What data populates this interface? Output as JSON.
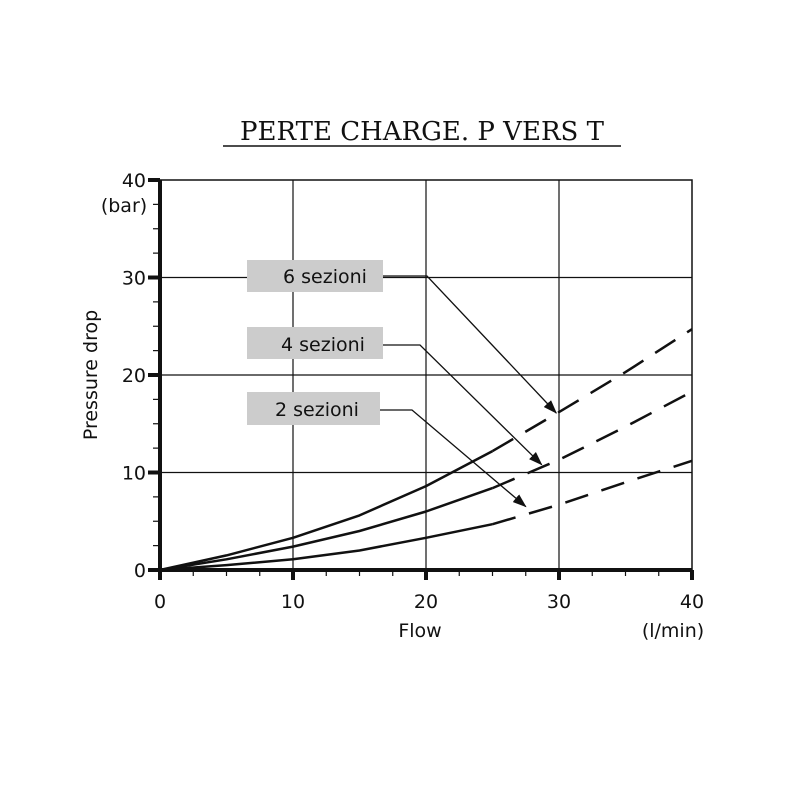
{
  "chart_data": {
    "type": "line",
    "title": "PERTE CHARGE. P VERS T",
    "xlabel": "Flow",
    "xunit": "(l/min)",
    "ylabel": "Pressure drop",
    "yunit": "(bar)",
    "xlim": [
      0,
      40
    ],
    "ylim": [
      0,
      40
    ],
    "xticks": [
      0,
      10,
      20,
      30,
      40
    ],
    "yticks": [
      0,
      10,
      20,
      30,
      40
    ],
    "grid": true,
    "series": [
      {
        "name": "6 sezioni",
        "solid": {
          "x": [
            0,
            5,
            10,
            15,
            20,
            25
          ],
          "y": [
            0,
            1.5,
            3.3,
            5.6,
            8.6,
            12.2
          ]
        },
        "dashed": {
          "x": [
            25,
            30,
            35,
            40
          ],
          "y": [
            12.2,
            16.2,
            20.3,
            24.7
          ]
        }
      },
      {
        "name": "4 sezioni",
        "solid": {
          "x": [
            0,
            5,
            10,
            15,
            20,
            25
          ],
          "y": [
            0,
            1.1,
            2.4,
            4.0,
            6.0,
            8.4
          ]
        },
        "dashed": {
          "x": [
            25,
            30,
            35,
            40
          ],
          "y": [
            8.4,
            11.3,
            14.7,
            18.3
          ]
        }
      },
      {
        "name": "2 sezioni",
        "solid": {
          "x": [
            0,
            5,
            10,
            15,
            20,
            25
          ],
          "y": [
            0,
            0.5,
            1.1,
            2.0,
            3.3,
            4.7
          ]
        },
        "dashed": {
          "x": [
            25,
            30,
            35,
            40
          ],
          "y": [
            4.7,
            6.7,
            9.0,
            11.2
          ]
        }
      }
    ],
    "callouts": [
      {
        "label": "6 sezioni",
        "target": [
          29.8,
          16.1
        ]
      },
      {
        "label": "4 sezioni",
        "target": [
          28.7,
          10.8
        ]
      },
      {
        "label": "2 sezioni",
        "target": [
          27.5,
          6.5
        ]
      }
    ]
  }
}
